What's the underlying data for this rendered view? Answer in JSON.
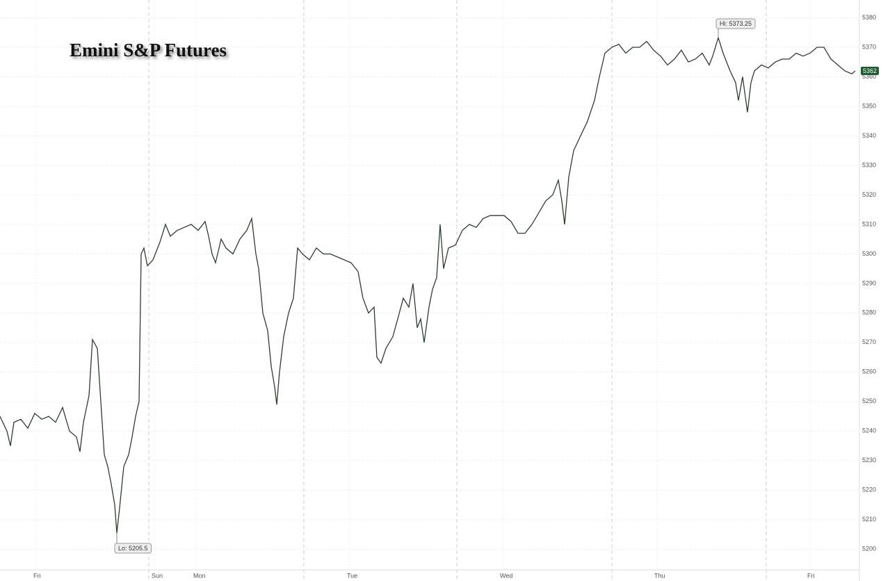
{
  "chart_data": {
    "type": "line",
    "title": "Emini S&P Futures",
    "x": [
      0,
      1,
      1.5,
      2,
      3,
      4,
      5,
      6,
      7,
      8,
      9,
      10,
      11,
      11.5,
      12,
      12.8,
      13.3,
      14,
      14.5,
      15,
      15.5,
      16,
      16.5,
      16.8,
      17.2,
      17.8,
      18.5,
      19,
      19.5,
      20,
      20.3,
      20.7,
      21.2,
      22,
      23,
      23.8,
      24.5,
      25.5,
      26.5,
      27.5,
      28.5,
      29.5,
      30,
      30.5,
      31,
      31.8,
      32.5,
      33.5,
      34.5,
      35.5,
      36.2,
      36.8,
      37.2,
      37.8,
      38.5,
      39,
      39.5,
      39.8,
      40.2,
      40.8,
      41.5,
      42.2,
      42.8,
      43.5,
      44.5,
      45.5,
      46.5,
      47.5,
      48.5,
      49.5,
      50.5,
      51.5,
      52.2,
      53,
      53.8,
      54.2,
      54.8,
      55.5,
      56.5,
      57.2,
      58,
      58.8,
      59.4,
      60,
      60.5,
      61,
      61.7,
      62.2,
      62.8,
      63.3,
      63.8,
      64.5,
      65.5,
      66.5,
      67.5,
      68.5,
      69.5,
      70.5,
      71.5,
      72.5,
      73.5,
      74.5,
      75.5,
      76.5,
      77.5,
      78.5,
      79.5,
      80.3,
      80.8,
      81.2,
      81.8,
      82.5,
      83.5,
      84.5,
      85.5,
      86.2,
      87,
      88,
      89,
      90,
      91,
      92,
      93,
      94,
      95,
      96,
      97,
      98,
      99,
      100,
      101,
      102,
      102.5,
      103.3,
      104,
      105,
      105.8,
      106.2,
      106.8,
      107.5,
      108,
      108.5,
      109.5,
      110.5,
      111.5,
      112.5,
      113.5,
      114.5,
      115.5,
      116.5,
      117.5,
      118.5,
      119.5,
      120.5,
      121.5,
      122.5,
      123
    ],
    "series": [
      {
        "name": "Emini S&P Futures",
        "color": "#2b3d2b",
        "values": [
          5245,
          5240,
          5235,
          5243,
          5244,
          5241,
          5246,
          5244,
          5245,
          5243,
          5248,
          5240,
          5238,
          5233,
          5243,
          5252,
          5271,
          5268,
          5250,
          5232,
          5228,
          5222,
          5215,
          5205.5,
          5214,
          5228,
          5232,
          5238,
          5245,
          5250,
          5300,
          5302,
          5296,
          5298,
          5304,
          5310,
          5306,
          5308,
          5309,
          5310,
          5308,
          5311,
          5306,
          5300,
          5297,
          5305,
          5302,
          5300,
          5305,
          5308,
          5312,
          5300,
          5295,
          5280,
          5274,
          5262,
          5255,
          5249,
          5260,
          5272,
          5280,
          5285,
          5302,
          5300,
          5298,
          5302,
          5300,
          5300,
          5299,
          5298,
          5297,
          5294,
          5285,
          5280,
          5282,
          5265,
          5263,
          5268,
          5272,
          5278,
          5285,
          5282,
          5290,
          5275,
          5278,
          5270,
          5282,
          5288,
          5292,
          5310,
          5295,
          5302,
          5303,
          5308,
          5310,
          5309,
          5312,
          5313,
          5313,
          5313,
          5311,
          5307,
          5307,
          5310,
          5314,
          5318,
          5320,
          5325,
          5318,
          5310,
          5326,
          5335,
          5340,
          5345,
          5352,
          5360,
          5368,
          5370,
          5371,
          5368,
          5370,
          5370,
          5372,
          5369,
          5367,
          5364,
          5366,
          5369,
          5365,
          5366,
          5368,
          5364,
          5367,
          5373.25,
          5368,
          5362,
          5358,
          5352,
          5360,
          5348,
          5358,
          5362,
          5364,
          5363,
          5365,
          5366,
          5366,
          5368,
          5367,
          5368,
          5370,
          5370,
          5366,
          5364,
          5362,
          5361,
          5362
        ]
      }
    ],
    "xlim": [
      0,
      123.6
    ],
    "xticks": [
      {
        "value": 5.2,
        "label": "Fri"
      },
      {
        "value": 22.2,
        "label": "Sun"
      },
      {
        "value": 28.2,
        "label": "Mon"
      },
      {
        "value": 50.3,
        "label": "Tue"
      },
      {
        "value": 72.3,
        "label": "Wed"
      },
      {
        "value": 94.5,
        "label": "Thu"
      },
      {
        "value": 116.5,
        "label": "Fri"
      }
    ],
    "session_breaks": [
      21.4,
      43.7,
      65.7,
      88,
      110.2
    ],
    "ylim": [
      5193,
      5386
    ],
    "yticks": [
      5200,
      5210,
      5220,
      5230,
      5240,
      5250,
      5260,
      5270,
      5280,
      5290,
      5300,
      5310,
      5320,
      5330,
      5340,
      5350,
      5360,
      5370,
      5380
    ],
    "grid": true,
    "annotations": [
      {
        "text": "Hi: 5373.25",
        "x": 103.3,
        "y": 5373.25
      },
      {
        "text": "Lo: 5205.5",
        "x": 16.8,
        "y": 5205.5
      }
    ],
    "last_value": 5362,
    "last_color": "#1e5a32"
  }
}
